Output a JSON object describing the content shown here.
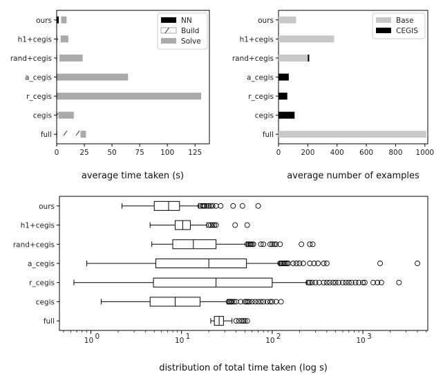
{
  "chart_data": [
    {
      "type": "bar",
      "orientation": "horizontal",
      "stacked": true,
      "categories": [
        "ours",
        "h1+cegis",
        "rand+cegis",
        "a_cegis",
        "r_cegis",
        "cegis",
        "full"
      ],
      "series": [
        {
          "name": "NN",
          "color": "#000000",
          "pattern": "solid",
          "values": [
            2,
            0.5,
            0.5,
            0.5,
            0.5,
            0.5,
            0.5
          ]
        },
        {
          "name": "Build",
          "color": "#ffffff",
          "pattern": "hatch",
          "values": [
            2,
            3,
            2,
            0,
            0,
            1,
            21
          ]
        },
        {
          "name": "Solve",
          "color": "#aaaaaa",
          "pattern": "solid",
          "values": [
            5,
            7,
            21,
            64,
            130,
            14,
            5
          ]
        }
      ],
      "xlabel": "average time taken (s)",
      "xlim": [
        0,
        138
      ],
      "xticks": [
        "0",
        "25",
        "50",
        "75",
        "100",
        "125"
      ],
      "legend_position": "top-right"
    },
    {
      "type": "bar",
      "orientation": "horizontal",
      "stacked": false,
      "categories": [
        "ours",
        "h1+cegis",
        "rand+cegis",
        "a_cegis",
        "r_cegis",
        "cegis",
        "full"
      ],
      "series": [
        {
          "name": "Base",
          "color": "#c8c8c8",
          "values": [
            120,
            380,
            200,
            0,
            0,
            0,
            1010
          ]
        },
        {
          "name": "CEGIS",
          "color": "#000000",
          "values": [
            0,
            0,
            10,
            70,
            60,
            110,
            0
          ]
        }
      ],
      "xlabel": "average number of examples",
      "xlim": [
        0,
        1020
      ],
      "xticks": [
        "0",
        "200",
        "400",
        "600",
        "800",
        "1000"
      ],
      "legend_position": "top-right"
    },
    {
      "type": "boxplot",
      "orientation": "horizontal",
      "scale": "log",
      "categories": [
        "ours",
        "h1+cegis",
        "rand+cegis",
        "a_cegis",
        "r_cegis",
        "cegis",
        "full"
      ],
      "boxes": [
        {
          "min": 2.2,
          "q1": 5.0,
          "median": 7.2,
          "q3": 9.5,
          "max": 15.5,
          "outliers": [
            16,
            17,
            17.5,
            18,
            19,
            20,
            21,
            22,
            24,
            27,
            37,
            47,
            70
          ]
        },
        {
          "min": 4.5,
          "q1": 8.5,
          "median": 10.3,
          "q3": 12.5,
          "max": 19,
          "outliers": [
            20,
            21,
            22,
            23,
            24,
            39,
            53
          ]
        },
        {
          "min": 4.7,
          "q1": 8.0,
          "median": 13.5,
          "q3": 24,
          "max": 52,
          "outliers": [
            53,
            55,
            57,
            58,
            60,
            62,
            75,
            80,
            95,
            100,
            105,
            110,
            122,
            210,
            260,
            280
          ]
        },
        {
          "min": 0.9,
          "q1": 5.2,
          "median": 20,
          "q3": 52,
          "max": 120,
          "outliers": [
            122,
            125,
            130,
            135,
            140,
            145,
            150,
            170,
            185,
            200,
            220,
            260,
            290,
            320,
            370,
            400,
            1550,
            4000
          ]
        },
        {
          "min": 0.65,
          "q1": 4.9,
          "median": 24,
          "q3": 100,
          "max": 240,
          "outliers": [
            250,
            260,
            275,
            300,
            330,
            370,
            400,
            430,
            470,
            500,
            540,
            600,
            650,
            700,
            750,
            830,
            900,
            1000,
            1050,
            1300,
            1450,
            1600,
            2500
          ]
        },
        {
          "min": 1.3,
          "q1": 4.5,
          "median": 8.5,
          "q3": 16,
          "max": 32,
          "outliers": [
            33,
            34,
            35,
            36,
            38,
            40,
            45,
            50,
            52,
            54,
            56,
            60,
            65,
            70,
            75,
            80,
            88,
            95,
            100,
            110,
            125
          ]
        },
        {
          "min": 21,
          "q1": 23,
          "median": 26,
          "q3": 29,
          "max": 36,
          "outliers": [
            40,
            43,
            46,
            48,
            50,
            53
          ]
        }
      ],
      "xlabel": "distribution of total time taken (log s)",
      "xlim": [
        0.45,
        5200
      ],
      "xticks": [
        {
          "base": "10",
          "exp": "0",
          "value": 1
        },
        {
          "base": "10",
          "exp": "1",
          "value": 10
        },
        {
          "base": "10",
          "exp": "2",
          "value": 100
        },
        {
          "base": "10",
          "exp": "3",
          "value": 1000
        }
      ]
    }
  ]
}
